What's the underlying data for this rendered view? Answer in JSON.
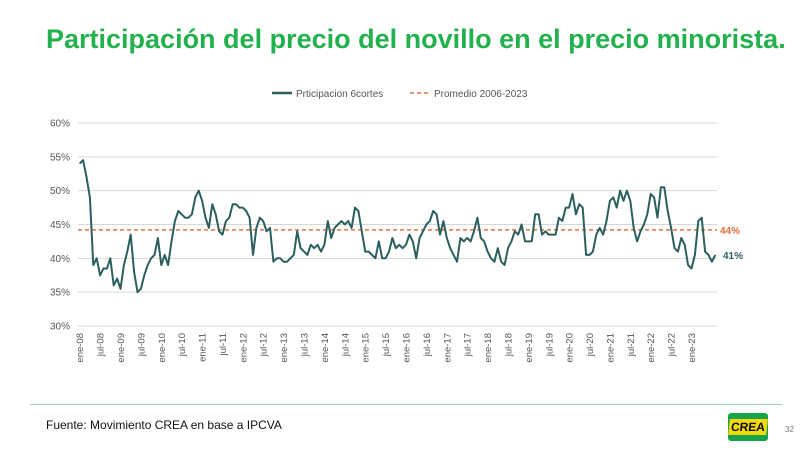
{
  "title": "Participación del precio del novillo en el precio minorista.",
  "source": "Fuente: Movimiento CREA en base a IPCVA",
  "logo_text": "CREA",
  "page_number": "32",
  "colors": {
    "title": "#22b14c",
    "series": "#2b5f5f",
    "average": "#e4703a"
  },
  "chart_data": {
    "type": "line",
    "title": "",
    "xlabel": "",
    "ylabel": "",
    "ylim": [
      30,
      60
    ],
    "yticks": [
      "30%",
      "35%",
      "40%",
      "45%",
      "50%",
      "55%",
      "60%"
    ],
    "x_tick_labels": [
      "ene-08",
      "jul-08",
      "ene-09",
      "jul-09",
      "ene-10",
      "jul-10",
      "ene-11",
      "jul-11",
      "ene-12",
      "jul-12",
      "ene-13",
      "jul-13",
      "ene-14",
      "jul-14",
      "ene-15",
      "jul-15",
      "ene-16",
      "jul-16",
      "ene-17",
      "jul-17",
      "ene-18",
      "jul-18",
      "ene-19",
      "jul-19",
      "ene-20",
      "jul-20",
      "ene-21",
      "jul-21",
      "ene-22",
      "jul-22",
      "ene-23"
    ],
    "x_start": "ene-08",
    "x_end": "dic-23",
    "grid": true,
    "legend_position": "top",
    "series": [
      {
        "name": "Prticipacion 6cortes",
        "style": "solid",
        "values": [
          54.0,
          54.5,
          52.0,
          49.0,
          39.0,
          40.0,
          37.5,
          38.5,
          38.5,
          40.0,
          36.0,
          37.0,
          35.5,
          39.0,
          41.0,
          43.5,
          38.0,
          35.0,
          35.5,
          37.5,
          39.0,
          40.0,
          40.5,
          43.0,
          39.0,
          40.5,
          39.0,
          42.5,
          45.5,
          47.0,
          46.5,
          46.0,
          46.0,
          46.5,
          49.0,
          50.0,
          48.5,
          46.0,
          44.5,
          48.0,
          46.5,
          44.0,
          43.5,
          45.5,
          46.0,
          48.0,
          48.0,
          47.5,
          47.5,
          47.0,
          46.0,
          40.5,
          44.5,
          46.0,
          45.5,
          44.0,
          44.5,
          39.5,
          40.0,
          40.0,
          39.5,
          39.5,
          40.0,
          40.5,
          44.0,
          41.5,
          41.0,
          40.5,
          42.0,
          41.5,
          42.0,
          41.0,
          42.0,
          45.5,
          43.0,
          44.5,
          45.0,
          45.5,
          45.0,
          45.5,
          44.5,
          47.5,
          47.0,
          44.0,
          41.0,
          41.0,
          40.5,
          40.0,
          42.5,
          40.0,
          40.0,
          41.0,
          43.0,
          41.5,
          42.0,
          41.5,
          42.0,
          43.5,
          42.5,
          40.0,
          43.0,
          44.0,
          45.0,
          45.5,
          47.0,
          46.5,
          43.5,
          45.5,
          43.0,
          41.5,
          40.5,
          39.5,
          43.0,
          42.5,
          43.0,
          42.5,
          44.0,
          46.0,
          43.0,
          42.5,
          41.0,
          40.0,
          39.5,
          41.5,
          39.5,
          39.0,
          41.5,
          42.5,
          44.0,
          43.5,
          45.0,
          42.5,
          42.5,
          42.5,
          46.5,
          46.5,
          43.5,
          44.0,
          43.5,
          43.5,
          43.5,
          46.0,
          45.5,
          47.5,
          47.5,
          49.5,
          46.5,
          48.0,
          47.5,
          40.5,
          40.5,
          41.0,
          43.5,
          44.5,
          43.5,
          45.5,
          48.5,
          49.0,
          47.5,
          50.0,
          48.5,
          50.0,
          48.5,
          44.5,
          42.5,
          44.0,
          45.0,
          46.5,
          49.5,
          49.0,
          46.0,
          50.5,
          50.5,
          47.0,
          44.5,
          41.5,
          41.0,
          43.0,
          42.0,
          39.0,
          38.5,
          40.5,
          45.5,
          46.0,
          41.0,
          40.5,
          39.5,
          40.5
        ]
      },
      {
        "name": "Promedio 2006-2023",
        "style": "dashed",
        "value": 44.2
      }
    ],
    "annotations": [
      {
        "text": "44%",
        "series": "Promedio 2006-2023"
      },
      {
        "text": "41%",
        "series": "Prticipacion 6cortes"
      }
    ]
  }
}
